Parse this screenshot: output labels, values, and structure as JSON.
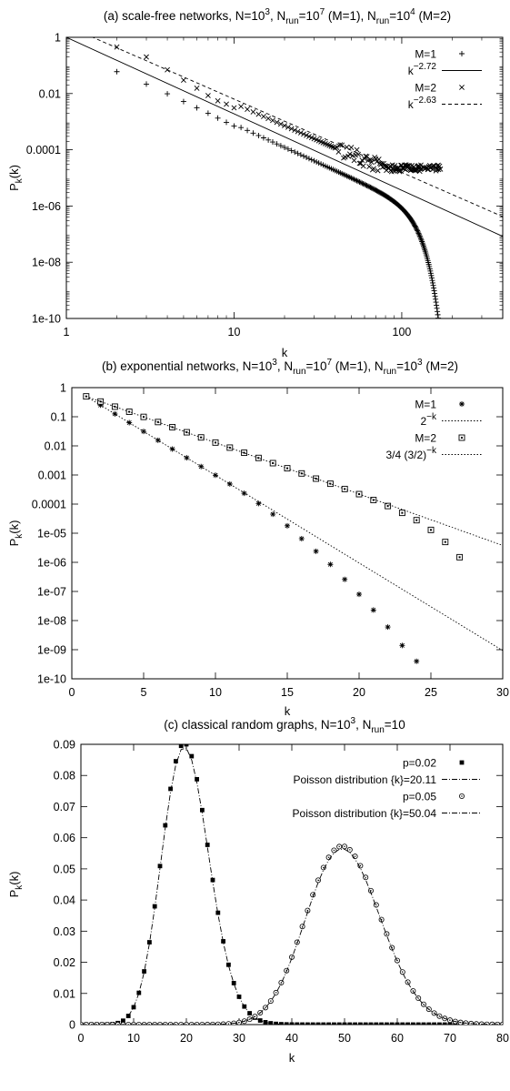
{
  "chart_data": [
    {
      "panel": "a",
      "type": "scatter",
      "title_parts": [
        "(a) scale-free networks, N=10",
        "3",
        ", N",
        "run",
        "=10",
        "7",
        " (M=1), N",
        "run",
        "=10",
        "4",
        " (M=2)"
      ],
      "xlabel": "k",
      "ylabel": "P",
      "ylabel_sub": "k",
      "ylabel_suffix": "(k)",
      "xscale": "log",
      "yscale": "log",
      "xlim": [
        1,
        400
      ],
      "ylim": [
        1e-10,
        1
      ],
      "xticks": [
        1,
        10,
        100
      ],
      "xtick_labels": [
        "1",
        "10",
        "100"
      ],
      "yticks": [
        1e-10,
        1e-08,
        1e-06,
        0.0001,
        0.01,
        1
      ],
      "ytick_labels": [
        "1e-10",
        "1e-08",
        "1e-06",
        "0.0001",
        "0.01",
        "1"
      ],
      "legend_position": "top-right",
      "series": [
        {
          "name": "M=1",
          "kind": "points",
          "marker": "plus",
          "model": {
            "A": 0.42,
            "g": 2.72,
            "kc": 110,
            "from": 2,
            "to": 215
          },
          "x": [
            2,
            3,
            4,
            5,
            6,
            7,
            8,
            9,
            10
          ],
          "y": [
            0.06,
            0.0217,
            0.0098,
            0.0052,
            0.0031,
            0.002,
            0.00134,
            0.00095,
            0.0007
          ]
        },
        {
          "name": "k",
          "name_sup": "−2.72",
          "kind": "line",
          "style": "solid",
          "x": [
            1,
            400
          ],
          "y": [
            1,
            8.3e-08
          ]
        },
        {
          "name": "M=2",
          "kind": "points",
          "marker": "cross",
          "model": {
            "A": 1.9,
            "g": 2.63,
            "kc": 0,
            "from": 2,
            "to": 170
          },
          "x": [
            2,
            3,
            4,
            5,
            6,
            7,
            8,
            9,
            10
          ],
          "y": [
            0.45,
            0.2,
            0.07,
            0.03,
            0.0155,
            0.0085,
            0.0055,
            0.0042,
            0.0031
          ]
        },
        {
          "name": "k",
          "name_sup": "−2.63",
          "kind": "line",
          "style": "dashed",
          "x": [
            1.2,
            400
          ],
          "y": [
            1.6,
            4.2e-07
          ]
        }
      ]
    },
    {
      "panel": "b",
      "type": "scatter",
      "title_parts": [
        "(b) exponential networks, N=10",
        "3",
        ", N",
        "run",
        "=10",
        "7",
        " (M=1), N",
        "run",
        "=10",
        "3",
        " (M=2)"
      ],
      "xlabel": "k",
      "ylabel": "P",
      "ylabel_sub": "k",
      "ylabel_suffix": "(k)",
      "xscale": "linear",
      "yscale": "log",
      "xlim": [
        0,
        30
      ],
      "ylim": [
        1e-10,
        1
      ],
      "xticks": [
        0,
        5,
        10,
        15,
        20,
        25,
        30
      ],
      "xtick_labels": [
        "0",
        "5",
        "10",
        "15",
        "20",
        "25",
        "30"
      ],
      "yticks": [
        1e-10,
        1e-09,
        1e-08,
        1e-07,
        1e-06,
        1e-05,
        0.0001,
        0.001,
        0.01,
        0.1,
        1
      ],
      "ytick_labels": [
        "1e-10",
        "1e-09",
        "1e-08",
        "1e-07",
        "1e-06",
        "1e-05",
        "0.0001",
        "0.001",
        "0.01",
        "0.1",
        "1"
      ],
      "legend_position": "top-right",
      "series": [
        {
          "name": "M=1",
          "kind": "points",
          "marker": "star",
          "x": [
            1,
            2,
            3,
            4,
            5,
            6,
            7,
            8,
            9,
            10,
            11,
            12,
            13,
            14,
            15,
            16,
            17,
            18,
            19,
            20,
            21,
            22,
            23,
            24
          ],
          "y": [
            0.5,
            0.25,
            0.125,
            0.0625,
            0.03125,
            0.0156,
            0.0078,
            0.0039,
            0.00195,
            0.00098,
            0.00049,
            0.000235,
            0.000105,
            4.5e-05,
            1.8e-05,
            6.5e-06,
            2.4e-06,
            8.5e-07,
            2.6e-07,
            8e-08,
            2.3e-08,
            6e-09,
            1.4e-09,
            4e-10
          ]
        },
        {
          "name": "2",
          "name_sup": "−k",
          "kind": "line",
          "style": "dotted",
          "x": [
            1,
            30
          ],
          "y": [
            0.5,
            9.3e-10
          ]
        },
        {
          "name": "M=2",
          "kind": "points",
          "marker": "square",
          "x": [
            1,
            2,
            3,
            4,
            5,
            6,
            7,
            8,
            9,
            10,
            11,
            12,
            13,
            14,
            15,
            16,
            17,
            18,
            19,
            20,
            21,
            22,
            23,
            24,
            25,
            26,
            27
          ],
          "y": [
            0.5,
            0.333,
            0.222,
            0.148,
            0.0988,
            0.0658,
            0.0439,
            0.0293,
            0.0195,
            0.013,
            0.0087,
            0.0058,
            0.00385,
            0.00255,
            0.0017,
            0.00113,
            0.00075,
            0.0005,
            0.00033,
            0.00022,
            0.000138,
            8.6e-05,
            5e-05,
            2.8e-05,
            1.3e-05,
            5e-06,
            1.5e-06
          ]
        },
        {
          "name": "3/4 (3/2)",
          "name_sup": "−k",
          "kind": "line",
          "style": "dotted",
          "x": [
            1,
            30
          ],
          "y": [
            0.5,
            3.8e-06
          ]
        }
      ]
    },
    {
      "panel": "c",
      "type": "scatter",
      "title_parts": [
        "(c) classical random graphs, N=10",
        "3",
        ", N",
        "run",
        "=10"
      ],
      "xlabel": "k",
      "ylabel": "P",
      "ylabel_sub": "k",
      "ylabel_suffix": "(k)",
      "xscale": "linear",
      "yscale": "linear",
      "xlim": [
        0,
        80
      ],
      "ylim": [
        0,
        0.09
      ],
      "xticks": [
        0,
        10,
        20,
        30,
        40,
        50,
        60,
        70,
        80
      ],
      "xtick_labels": [
        "0",
        "10",
        "20",
        "30",
        "40",
        "50",
        "60",
        "70",
        "80"
      ],
      "yticks": [
        0,
        0.01,
        0.02,
        0.03,
        0.04,
        0.05,
        0.06,
        0.07,
        0.08,
        0.09
      ],
      "ytick_labels": [
        "0",
        "0.01",
        "0.02",
        "0.03",
        "0.04",
        "0.05",
        "0.06",
        "0.07",
        "0.08",
        "0.09"
      ],
      "legend_position": "top-right",
      "series": [
        {
          "name": "p=0.02",
          "kind": "points",
          "marker": "filled-square",
          "poisson_mean": 20.11,
          "peak": 0.09
        },
        {
          "name": "Poisson distribution {k}=20.11",
          "kind": "line",
          "style": "dashdot",
          "poisson_mean": 20.11
        },
        {
          "name": "p=0.05",
          "kind": "points",
          "marker": "open-circle",
          "poisson_mean": 50.04,
          "peak": 0.0572
        },
        {
          "name": "Poisson distribution {k}=50.04",
          "kind": "line",
          "style": "dashdot",
          "poisson_mean": 50.04
        }
      ]
    }
  ]
}
